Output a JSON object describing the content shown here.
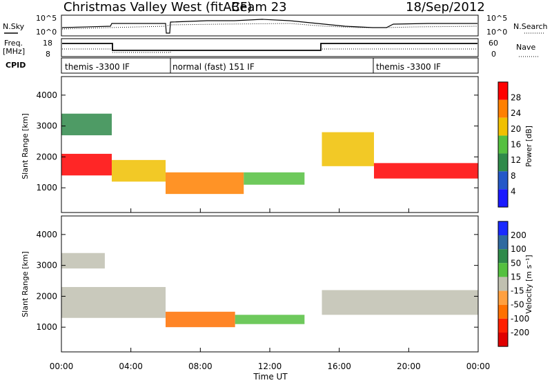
{
  "header": {
    "radar_title": "Christmas Valley West (fitACF)",
    "beam": "Beam 23",
    "date": "18/Sep/2012"
  },
  "panels": {
    "nsky_label": "N.Sky",
    "nsky_ticks": [
      "10^5",
      "10^0"
    ],
    "nsearch_label": "N.Search",
    "nsearch_ticks": [
      "10^5",
      "10^0"
    ],
    "freq_label": "Freq.",
    "freq_unit": "[MHz]",
    "freq_ticks": [
      "18",
      "8"
    ],
    "nave_label": "Nave",
    "nave_ticks": [
      "60",
      "0"
    ],
    "cpid_label": "CPID",
    "cpid_segments": [
      "themis -3300 IF",
      "normal (fast) 151 IF",
      "themis -3300 IF"
    ]
  },
  "chart_data": [
    {
      "type": "heatmap",
      "name": "power-panel",
      "ylabel": "Slant Range [km]",
      "y_ticks": [
        1000,
        2000,
        3000,
        4000
      ],
      "ylim": [
        200,
        4600
      ],
      "colorbar_label": "Power [dB]",
      "colorbar_ticks": [
        4,
        8,
        12,
        16,
        20,
        24,
        28
      ],
      "colorbar_colors": [
        "#1a1aff",
        "#2458c8",
        "#2f8a4a",
        "#55c040",
        "#f0c000",
        "#ff8000",
        "#ff0000"
      ],
      "bands": [
        {
          "t0": 0.0,
          "t1": 2.9,
          "r0": 1400,
          "r1": 2100,
          "level": 28
        },
        {
          "t0": 0.0,
          "t1": 2.9,
          "r0": 2700,
          "r1": 3400,
          "level": 10
        },
        {
          "t0": 2.9,
          "t1": 6.0,
          "r0": 1200,
          "r1": 1900,
          "level": 20
        },
        {
          "t0": 6.0,
          "t1": 10.5,
          "r0": 800,
          "r1": 1500,
          "level": 24
        },
        {
          "t0": 10.5,
          "t1": 14.0,
          "r0": 1100,
          "r1": 1500,
          "level": 14
        },
        {
          "t0": 15.0,
          "t1": 18.0,
          "r0": 1700,
          "r1": 2800,
          "level": 18
        },
        {
          "t0": 18.0,
          "t1": 24.0,
          "r0": 1300,
          "r1": 1800,
          "level": 26
        }
      ]
    },
    {
      "type": "heatmap",
      "name": "velocity-panel",
      "xlabel": "Time UT",
      "ylabel": "Slant Range [km]",
      "y_ticks": [
        1000,
        2000,
        3000,
        4000
      ],
      "ylim": [
        200,
        4600
      ],
      "x_ticks": [
        "00:00",
        "04:00",
        "08:00",
        "12:00",
        "16:00",
        "20:00",
        "00:00"
      ],
      "xlim": [
        0,
        24
      ],
      "colorbar_label": "Velocity [m s⁻¹]",
      "colorbar_ticks": [
        200,
        100,
        50,
        15,
        -15,
        -50,
        -100,
        -200
      ],
      "colorbar_colors": [
        "#1a2aff",
        "#2f6aa0",
        "#2f8a4a",
        "#55c040",
        "#c0c0b0",
        "#ffa040",
        "#ff7000",
        "#ff2000",
        "#e00000"
      ],
      "bands": [
        {
          "t0": 0.0,
          "t1": 6.0,
          "r0": 1300,
          "r1": 2300,
          "level": 0
        },
        {
          "t0": 0.0,
          "t1": 2.5,
          "r0": 2900,
          "r1": 3400,
          "level": 0
        },
        {
          "t0": 6.0,
          "t1": 10.0,
          "r0": 1000,
          "r1": 1500,
          "level": -60
        },
        {
          "t0": 10.0,
          "t1": 14.0,
          "r0": 1100,
          "r1": 1400,
          "level": 30
        },
        {
          "t0": 15.0,
          "t1": 24.0,
          "r0": 1400,
          "r1": 2200,
          "level": 0
        }
      ]
    }
  ]
}
